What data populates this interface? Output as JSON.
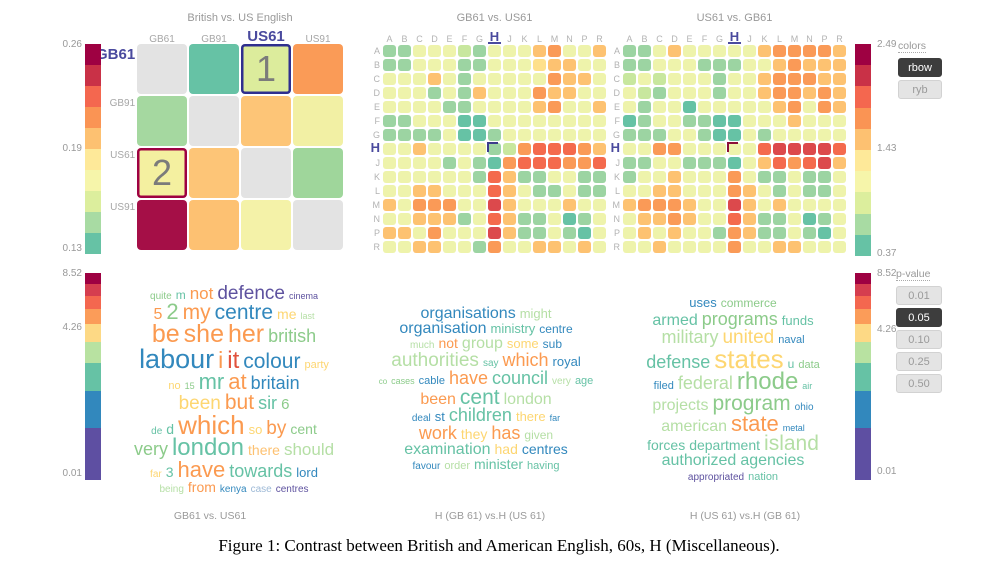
{
  "palette": {
    "heatmap": {
      "G": "#66c2a5",
      "g": "#9cd4a2",
      "l": "#c8e79e",
      "y": "#eef3ab",
      "Y": "#fee08b",
      "o": "#fdc271",
      "O": "#fa9a57",
      "r": "#f46a4d",
      "R": "#dc494c",
      "C": "#b01c4e",
      "e": "#e3e3e3"
    },
    "words": {
      "or": "#fb9a50",
      "re": "#e1523d",
      "bl": "#3288bd",
      "te": "#66c2a5",
      "gr": "#8ccb8a",
      "lg": "#b5dfa5",
      "ye": "#fdd671",
      "lo": "#fdc171",
      "pu": "#5e529f",
      "lb": "#9db9d6"
    }
  },
  "scales": {
    "matrix": {
      "labels": [
        "0.26",
        "0.19",
        "0.13"
      ],
      "colors": [
        "#9e0142",
        "#c93147",
        "#f4674f",
        "#fa9454",
        "#fdc171",
        "#fee999",
        "#f6f5aa",
        "#dcee9d",
        "#a8dba3",
        "#66c2a5"
      ]
    },
    "top_right": {
      "labels": [
        "2.49",
        "1.43",
        "0.37"
      ],
      "colors": [
        "#9e0142",
        "#c93147",
        "#f4674f",
        "#fa9454",
        "#fdc171",
        "#fee999",
        "#f6f5aa",
        "#dcee9d",
        "#a8dba3",
        "#66c2a5"
      ]
    },
    "bottom_left": {
      "labels": [
        "8.52",
        "4.26",
        "0.01"
      ],
      "segments": [
        [
          "#9e0142",
          11
        ],
        [
          "#d53e4f",
          12
        ],
        [
          "#f4674f",
          13
        ],
        [
          "#fb9c59",
          15
        ],
        [
          "#fdd985",
          18
        ],
        [
          "#b8e2a1",
          21
        ],
        [
          "#66c2a5",
          28
        ],
        [
          "#3288bd",
          37
        ],
        [
          "#5e4fa2",
          52
        ]
      ]
    },
    "bottom_right": {
      "labels": [
        "8.52",
        "4.26",
        "0.01"
      ],
      "segments": [
        [
          "#9e0142",
          11
        ],
        [
          "#d53e4f",
          12
        ],
        [
          "#f4674f",
          13
        ],
        [
          "#fb9c59",
          15
        ],
        [
          "#fdd985",
          18
        ],
        [
          "#b8e2a1",
          21
        ],
        [
          "#66c2a5",
          28
        ],
        [
          "#3288bd",
          37
        ],
        [
          "#5e4fa2",
          52
        ]
      ]
    }
  },
  "controls": {
    "colors": {
      "label": "colors",
      "options": [
        {
          "label": "rbow",
          "active": true
        },
        {
          "label": "ryb",
          "active": false
        }
      ]
    },
    "p_value": {
      "label": "p-value",
      "options": [
        {
          "label": "0.01",
          "active": false
        },
        {
          "label": "0.05",
          "active": true
        },
        {
          "label": "0.10",
          "active": false
        },
        {
          "label": "0.25",
          "active": false
        },
        {
          "label": "0.50",
          "active": false
        }
      ]
    }
  },
  "figure_caption": "Figure 1: Contrast between British and American English, 60s, H (Miscellaneous).",
  "chart_data": [
    {
      "type": "heatmap",
      "title": "British vs. US English",
      "labels": [
        "GB61",
        "GB91",
        "US61",
        "US91"
      ],
      "selected_row": 0,
      "selected_col": 2,
      "rows": [
        [
          "#e3e3e3",
          "#66c2a5",
          "#dcec9c",
          "#fa9b57"
        ],
        [
          "#a5d8a0",
          "#e3e3e3",
          "#fdc577",
          "#f2f0a4"
        ],
        [
          "#f4f0a0",
          "#fdc577",
          "#e3e3e3",
          "#9fd69b"
        ],
        [
          "#a50f47",
          "#fdc172",
          "#f4f2a8",
          "#e3e3e3"
        ]
      ],
      "annotations": [
        {
          "row": 0,
          "col": 2,
          "label": "1",
          "border": "#2f2f8f"
        },
        {
          "row": 2,
          "col": 0,
          "label": "2",
          "border": "#9e0142"
        }
      ]
    },
    {
      "type": "heatmap",
      "title": "GB61 vs. US61",
      "letters": [
        "A",
        "B",
        "C",
        "D",
        "E",
        "F",
        "G",
        "H",
        "J",
        "K",
        "L",
        "M",
        "N",
        "P",
        "R"
      ],
      "selected": "H",
      "marked": {
        "row": 7,
        "col": 7,
        "color": "#3c3c8c"
      },
      "cells": [
        "ggyyylgyyyoOyyo",
        "ggyyyggyyyYooyy",
        "yyyoygyyyyyOooy",
        "yyygygoyyyOooyy",
        "yyyyggyyyyoOyyo",
        "ggyyyGGyyyyyyyy",
        "ggggyGGgyyyyyyy",
        "yyoyyyyglOrrrOo",
        "yyyygygGOrrrOOr",
        "yyyyyygroggyygg",
        "yyooyyyroyggygg",
        "oyOOOyyRoyyyoyy",
        "yyooogyroggyGgy",
        "ooyOyyyRoggygGy",
        "yyooyygOyyooyoy"
      ]
    },
    {
      "type": "heatmap",
      "title": "US61 vs. GB61",
      "letters": [
        "A",
        "B",
        "C",
        "D",
        "E",
        "F",
        "G",
        "H",
        "J",
        "K",
        "L",
        "M",
        "N",
        "P",
        "R"
      ],
      "selected": "H",
      "marked": {
        "row": 7,
        "col": 7,
        "color": "#8b1038"
      },
      "cells": [
        "ggyoyyyyyoOOOOo",
        "ggyyygggyyoOooo",
        "lylyyygyyoOOOoo",
        "ylgyyygyyoOOoOo",
        "ygyyGyyyyyoOyOo",
        "GgyyggGGyyyoyyy",
        "gggyygGGygyyyyy",
        "yyOOyyyyyrRRRRr",
        "ggyygggGyorOrRo",
        "gyyoyyyOyggyggy",
        "yyooyyyOoygyggy",
        "oOOOoyyRoyoyyyy",
        "yooOoyyroggyGgy",
        "yoyoyygOoggygGy",
        "yyoyyyyOyyooyyy"
      ]
    },
    {
      "type": "wordcloud",
      "title": "GB61 vs. US61",
      "lines": [
        [
          [
            "quite",
            13,
            "gr"
          ],
          [
            "m",
            15,
            "te"
          ],
          [
            "not",
            21,
            "or"
          ],
          [
            "defence",
            24,
            "pu"
          ],
          [
            "cinema",
            11,
            "pu"
          ]
        ],
        [
          [
            "5",
            20,
            "or"
          ],
          [
            "2",
            27,
            "gr"
          ],
          [
            "my",
            26,
            "or"
          ],
          [
            "centre",
            26,
            "bl"
          ],
          [
            "me",
            17,
            "ye"
          ],
          [
            "last",
            11,
            "lg"
          ]
        ],
        [
          [
            "be",
            31,
            "or"
          ],
          [
            "she",
            31,
            "or"
          ],
          [
            "her",
            31,
            "or"
          ],
          [
            "british",
            23,
            "gr"
          ]
        ],
        [
          [
            "labour",
            34,
            "bl"
          ],
          [
            "i",
            29,
            "or"
          ],
          [
            "it",
            30,
            "re"
          ],
          [
            "colour",
            26,
            "bl"
          ],
          [
            "party",
            14,
            "ye"
          ]
        ],
        [
          [
            "no",
            14,
            "ye"
          ],
          [
            "15",
            11,
            "gr"
          ],
          [
            "mr",
            28,
            "te"
          ],
          [
            "at",
            27,
            "or"
          ],
          [
            "britain",
            22,
            "bl"
          ]
        ],
        [
          [
            "been",
            24,
            "ye"
          ],
          [
            "but",
            26,
            "or"
          ],
          [
            "sir",
            23,
            "te"
          ],
          [
            "6",
            19,
            "gr"
          ]
        ],
        [
          [
            "de",
            12,
            "te"
          ],
          [
            "d",
            17,
            "te"
          ],
          [
            "which",
            33,
            "or"
          ],
          [
            "so",
            16,
            "ye"
          ],
          [
            "by",
            24,
            "or"
          ],
          [
            "cent",
            18,
            "gr"
          ]
        ],
        [
          [
            "very",
            22,
            "gr"
          ],
          [
            "london",
            30,
            "te"
          ],
          [
            "there",
            17,
            "lo"
          ],
          [
            "should",
            21,
            "lg"
          ]
        ],
        [
          [
            "far",
            12,
            "ye"
          ],
          [
            "3",
            18,
            "te"
          ],
          [
            "have",
            28,
            "or"
          ],
          [
            "towards",
            22,
            "te"
          ],
          [
            "lord",
            16,
            "bl"
          ]
        ],
        [
          [
            "being",
            13,
            "lg"
          ],
          [
            "from",
            18,
            "or"
          ],
          [
            "kenya",
            13,
            "bl"
          ],
          [
            "case",
            12,
            "lb"
          ],
          [
            "centres",
            12,
            "pu"
          ]
        ]
      ]
    },
    {
      "type": "wordcloud",
      "title": "H (GB 61) vs.H (US 61)",
      "lines": [
        [
          [
            "organisations",
            20,
            "bl"
          ],
          [
            "might",
            16,
            "lg"
          ]
        ],
        [
          [
            "organisation",
            20,
            "bl"
          ],
          [
            "ministry",
            16,
            "te"
          ],
          [
            "centre",
            15,
            "bl"
          ]
        ],
        [
          [
            "much",
            13,
            "lg"
          ],
          [
            "not",
            17,
            "or"
          ],
          [
            "group",
            20,
            "lg"
          ],
          [
            "some",
            16,
            "ye"
          ],
          [
            "sub",
            15,
            "bl"
          ]
        ],
        [
          [
            "authorities",
            24,
            "lg"
          ],
          [
            "say",
            12,
            "te"
          ],
          [
            "which",
            22,
            "or"
          ],
          [
            "royal",
            16,
            "bl"
          ]
        ],
        [
          [
            "co",
            10,
            "gr"
          ],
          [
            "cases",
            11,
            "gr"
          ],
          [
            "cable",
            14,
            "bl"
          ],
          [
            "have",
            22,
            "or"
          ],
          [
            "council",
            22,
            "te"
          ],
          [
            "very",
            12,
            "lg"
          ],
          [
            "age",
            14,
            "te"
          ]
        ],
        [
          [
            "been",
            20,
            "or"
          ],
          [
            "cent",
            26,
            "te"
          ],
          [
            "london",
            20,
            "lg"
          ]
        ],
        [
          [
            "deal",
            12,
            "bl"
          ],
          [
            "st",
            16,
            "bl"
          ],
          [
            "children",
            22,
            "te"
          ],
          [
            "there",
            16,
            "ye"
          ],
          [
            "far",
            11,
            "bl"
          ]
        ],
        [
          [
            "work",
            22,
            "or"
          ],
          [
            "they",
            18,
            "ye"
          ],
          [
            "has",
            22,
            "or"
          ],
          [
            "given",
            15,
            "lg"
          ]
        ],
        [
          [
            "examination",
            20,
            "te"
          ],
          [
            "had",
            18,
            "ye"
          ],
          [
            "centres",
            18,
            "bl"
          ]
        ],
        [
          [
            "favour",
            12,
            "bl"
          ],
          [
            "order",
            14,
            "lg"
          ],
          [
            "minister",
            18,
            "te"
          ],
          [
            "having",
            14,
            "te"
          ]
        ]
      ]
    },
    {
      "type": "wordcloud",
      "title": "H (US 61) vs.H (GB 61)",
      "lines": [
        [
          [
            "uses",
            16,
            "bl"
          ],
          [
            "commerce",
            15,
            "gr"
          ]
        ],
        [
          [
            "armed",
            20,
            "te"
          ],
          [
            "programs",
            22,
            "gr"
          ],
          [
            "funds",
            16,
            "te"
          ]
        ],
        [
          [
            "military",
            22,
            "lg"
          ],
          [
            "united",
            24,
            "ye"
          ],
          [
            "naval",
            14,
            "bl"
          ]
        ],
        [
          [
            "defense",
            22,
            "te"
          ],
          [
            "states",
            32,
            "ye"
          ],
          [
            "u",
            15,
            "te"
          ],
          [
            "data",
            14,
            "gr"
          ]
        ],
        [
          [
            "filed",
            14,
            "bl"
          ],
          [
            "federal",
            22,
            "lg"
          ],
          [
            "rhode",
            30,
            "gr"
          ],
          [
            "air",
            11,
            "te"
          ]
        ],
        [
          [
            "projects",
            20,
            "lg"
          ],
          [
            "program",
            26,
            "gr"
          ],
          [
            "ohio",
            13,
            "bl"
          ]
        ],
        [
          [
            "american",
            20,
            "lg"
          ],
          [
            "state",
            28,
            "or"
          ],
          [
            "metal",
            11,
            "bl"
          ]
        ],
        [
          [
            "forces",
            18,
            "te"
          ],
          [
            "department",
            18,
            "te"
          ],
          [
            "island",
            26,
            "lg"
          ]
        ],
        [
          [
            "authorized",
            20,
            "te"
          ],
          [
            "agencies",
            20,
            "te"
          ]
        ],
        [
          [
            "appropriated",
            12,
            "pu"
          ],
          [
            "nation",
            14,
            "te"
          ]
        ]
      ]
    }
  ]
}
